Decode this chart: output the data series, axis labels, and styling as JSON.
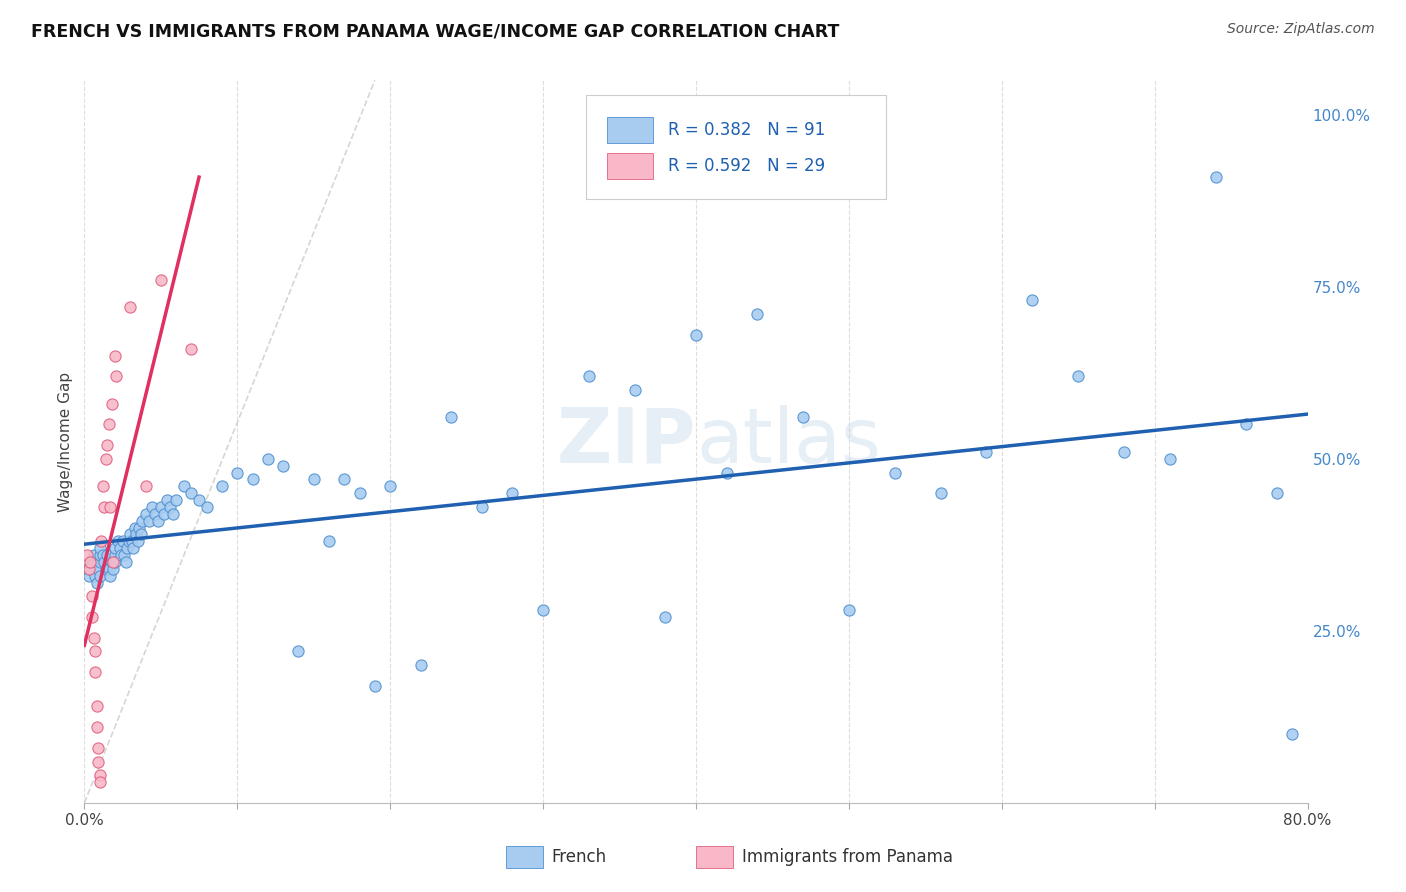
{
  "title": "FRENCH VS IMMIGRANTS FROM PANAMA WAGE/INCOME GAP CORRELATION CHART",
  "source": "Source: ZipAtlas.com",
  "ylabel": "Wage/Income Gap",
  "xlim": [
    0.0,
    0.8
  ],
  "ylim": [
    0.0,
    1.05
  ],
  "french_R": 0.382,
  "french_N": 91,
  "panama_R": 0.592,
  "panama_N": 29,
  "french_color": "#a8ccf0",
  "french_edge_color": "#5090d0",
  "french_line_color": "#2060b0",
  "panama_color": "#f8b8c8",
  "panama_edge_color": "#e06080",
  "panama_line_color": "#e03060",
  "diag_line_color": "#cccccc",
  "watermark": "ZIPatlas",
  "background_color": "#ffffff",
  "grid_color": "#dddddd",
  "right_tick_color": "#4488cc",
  "title_color": "#111111",
  "source_color": "#555555",
  "french_x": [
    0.002,
    0.003,
    0.004,
    0.005,
    0.006,
    0.007,
    0.008,
    0.009,
    0.01,
    0.01,
    0.01,
    0.01,
    0.012,
    0.013,
    0.014,
    0.015,
    0.016,
    0.017,
    0.018,
    0.019,
    0.02,
    0.02,
    0.02,
    0.022,
    0.023,
    0.024,
    0.025,
    0.026,
    0.027,
    0.028,
    0.029,
    0.03,
    0.031,
    0.032,
    0.033,
    0.034,
    0.035,
    0.036,
    0.037,
    0.038,
    0.04,
    0.042,
    0.044,
    0.046,
    0.048,
    0.05,
    0.052,
    0.054,
    0.056,
    0.058,
    0.06,
    0.065,
    0.07,
    0.075,
    0.08,
    0.09,
    0.1,
    0.11,
    0.12,
    0.13,
    0.14,
    0.15,
    0.16,
    0.17,
    0.18,
    0.19,
    0.2,
    0.22,
    0.24,
    0.26,
    0.28,
    0.3,
    0.33,
    0.36,
    0.38,
    0.4,
    0.42,
    0.44,
    0.47,
    0.5,
    0.53,
    0.56,
    0.59,
    0.62,
    0.65,
    0.68,
    0.71,
    0.74,
    0.76,
    0.78,
    0.79
  ],
  "french_y": [
    0.34,
    0.33,
    0.34,
    0.35,
    0.36,
    0.33,
    0.32,
    0.34,
    0.35,
    0.36,
    0.37,
    0.33,
    0.36,
    0.35,
    0.34,
    0.36,
    0.34,
    0.33,
    0.35,
    0.34,
    0.36,
    0.37,
    0.35,
    0.38,
    0.37,
    0.36,
    0.38,
    0.36,
    0.35,
    0.37,
    0.38,
    0.39,
    0.38,
    0.37,
    0.4,
    0.39,
    0.38,
    0.4,
    0.39,
    0.41,
    0.42,
    0.41,
    0.43,
    0.42,
    0.41,
    0.43,
    0.42,
    0.44,
    0.43,
    0.42,
    0.44,
    0.46,
    0.45,
    0.44,
    0.43,
    0.46,
    0.48,
    0.47,
    0.5,
    0.49,
    0.22,
    0.47,
    0.38,
    0.47,
    0.45,
    0.17,
    0.46,
    0.2,
    0.56,
    0.43,
    0.45,
    0.28,
    0.62,
    0.6,
    0.27,
    0.68,
    0.48,
    0.71,
    0.56,
    0.28,
    0.48,
    0.45,
    0.51,
    0.73,
    0.62,
    0.51,
    0.5,
    0.91,
    0.55,
    0.45,
    0.1
  ],
  "panama_x": [
    0.002,
    0.003,
    0.004,
    0.005,
    0.005,
    0.006,
    0.007,
    0.007,
    0.008,
    0.008,
    0.009,
    0.009,
    0.01,
    0.01,
    0.011,
    0.012,
    0.013,
    0.014,
    0.015,
    0.016,
    0.017,
    0.018,
    0.019,
    0.02,
    0.021,
    0.03,
    0.04,
    0.05,
    0.07
  ],
  "panama_y": [
    0.36,
    0.34,
    0.35,
    0.3,
    0.27,
    0.24,
    0.22,
    0.19,
    0.14,
    0.11,
    0.08,
    0.06,
    0.04,
    0.03,
    0.38,
    0.46,
    0.43,
    0.5,
    0.52,
    0.55,
    0.43,
    0.58,
    0.35,
    0.65,
    0.62,
    0.72,
    0.46,
    0.76,
    0.66
  ]
}
